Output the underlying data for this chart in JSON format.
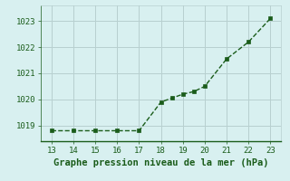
{
  "x": [
    13,
    14,
    15,
    16,
    17,
    18,
    18.5,
    19,
    19.5,
    20,
    21,
    22,
    23
  ],
  "y": [
    1018.8,
    1018.8,
    1018.8,
    1018.8,
    1018.8,
    1019.9,
    1020.05,
    1020.2,
    1020.3,
    1020.5,
    1021.55,
    1022.2,
    1023.1
  ],
  "line_color": "#1a5c1a",
  "marker_color": "#1a5c1a",
  "bg_color": "#d8f0f0",
  "grid_color": "#b8d0d0",
  "xlabel": "Graphe pression niveau de la mer (hPa)",
  "xlabel_color": "#1a5c1a",
  "xlim": [
    12.5,
    23.5
  ],
  "ylim": [
    1018.4,
    1023.6
  ],
  "xticks": [
    13,
    14,
    15,
    16,
    17,
    18,
    19,
    20,
    21,
    22,
    23
  ],
  "yticks": [
    1019,
    1020,
    1021,
    1022,
    1023
  ],
  "tick_color": "#1a5c1a",
  "tick_fontsize": 6.5,
  "xlabel_fontsize": 7.5
}
